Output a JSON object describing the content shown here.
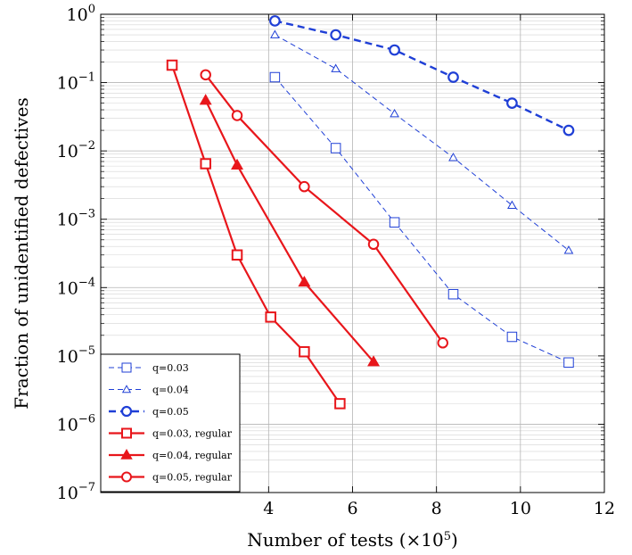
{
  "chart_data": {
    "type": "line",
    "title": "",
    "xlabel": "Number of tests",
    "xlabel_unit_prefix": "(×10",
    "xlabel_unit_exp": "5",
    "xlabel_unit_suffix": ")",
    "ylabel": "Fraction of unidentified defectives",
    "y_scale": "log",
    "xlim": [
      0,
      12
    ],
    "ylim": [
      1e-07,
      1
    ],
    "grid": true,
    "legend_placement": "bottom-left",
    "x_ticks": [
      {
        "value": 4,
        "label": "4"
      },
      {
        "value": 6,
        "label": "6"
      },
      {
        "value": 8,
        "label": "8"
      },
      {
        "value": 10,
        "label": "10"
      },
      {
        "value": 12,
        "label": "12"
      }
    ],
    "y_ticks": [
      {
        "value": 1,
        "base": "10",
        "exp": "0"
      },
      {
        "value": 0.1,
        "base": "10",
        "exp": "−1"
      },
      {
        "value": 0.01,
        "base": "10",
        "exp": "−2"
      },
      {
        "value": 0.001,
        "base": "10",
        "exp": "−3"
      },
      {
        "value": 0.0001,
        "base": "10",
        "exp": "−4"
      },
      {
        "value": 1e-05,
        "base": "10",
        "exp": "−5"
      },
      {
        "value": 1e-06,
        "base": "10",
        "exp": "−6"
      },
      {
        "value": 1e-07,
        "base": "10",
        "exp": "−7"
      }
    ],
    "series": [
      {
        "name": "q=0.03",
        "color": "#1f3fd6",
        "style": "dashed-thin",
        "marker": "square",
        "x": [
          4.15,
          5.6,
          7.0,
          8.4,
          9.8,
          11.15
        ],
        "y": [
          0.12,
          0.011,
          0.0009,
          8e-05,
          1.9e-05,
          8e-06
        ]
      },
      {
        "name": "q=0.04",
        "color": "#1f3fd6",
        "style": "dashed-thin",
        "marker": "triangle",
        "x": [
          4.15,
          5.6,
          7.0,
          8.4,
          9.8,
          11.15
        ],
        "y": [
          0.5,
          0.16,
          0.035,
          0.008,
          0.0016,
          0.00035
        ]
      },
      {
        "name": "q=0.05",
        "color": "#1f3fd6",
        "style": "dashed-thick",
        "marker": "circle",
        "x": [
          4.15,
          5.6,
          7.0,
          8.4,
          9.8,
          11.15
        ],
        "y": [
          0.8,
          0.5,
          0.3,
          0.12,
          0.05,
          0.02
        ]
      },
      {
        "name": "q=0.03, regular",
        "color": "#e8161b",
        "style": "solid",
        "marker": "square",
        "x": [
          1.7,
          2.5,
          3.25,
          4.05,
          4.85,
          5.7
        ],
        "y": [
          0.18,
          0.0065,
          0.0003,
          3.7e-05,
          1.15e-05,
          2e-06
        ]
      },
      {
        "name": "q=0.04, regular",
        "color": "#e8161b",
        "style": "solid",
        "marker": "triangle",
        "x": [
          2.5,
          3.25,
          4.85,
          6.5
        ],
        "y": [
          0.055,
          0.0062,
          0.00012,
          8.2e-06
        ]
      },
      {
        "name": "q=0.05, regular",
        "color": "#e8161b",
        "style": "solid",
        "marker": "circle",
        "x": [
          2.5,
          3.25,
          4.85,
          6.5,
          8.15
        ],
        "y": [
          0.13,
          0.033,
          0.003,
          0.00043,
          1.55e-05
        ]
      }
    ]
  }
}
